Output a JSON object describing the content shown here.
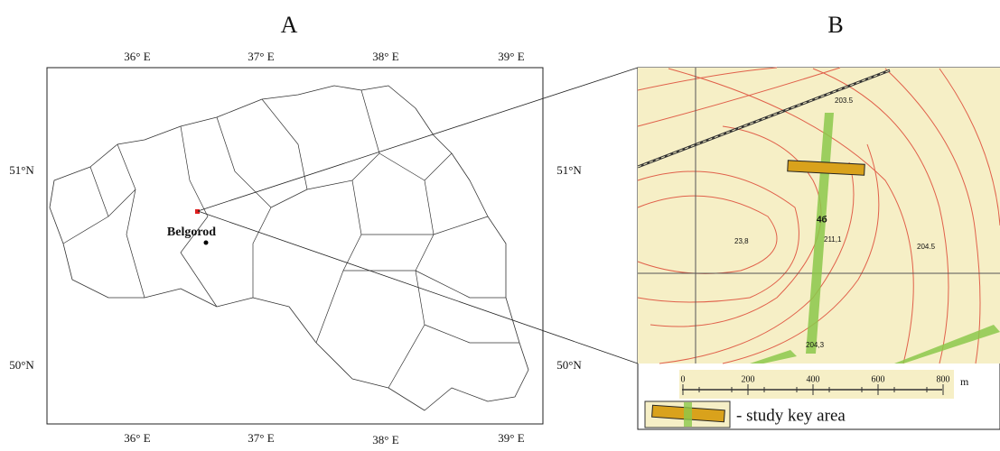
{
  "panel_a": {
    "title": "A",
    "lon_labels_top": [
      "36° E",
      "37° E",
      "38° E",
      "39° E"
    ],
    "lon_labels_bottom": [
      "36° E",
      "37° E",
      "38° E",
      "39° E"
    ],
    "lat_labels_left": [
      "51°N",
      "50°N"
    ],
    "lat_labels_right": [
      "51°N",
      "50°N"
    ],
    "city": "Belgorod"
  },
  "panel_b": {
    "title": "B",
    "spot_heights": [
      "203.5",
      "211,1",
      "204.5",
      "23,8",
      "204,3",
      "4б"
    ],
    "scale": {
      "ticks": [
        "0",
        "200",
        "400",
        "600",
        "800"
      ],
      "unit": "m"
    },
    "legend": "- study key area"
  }
}
